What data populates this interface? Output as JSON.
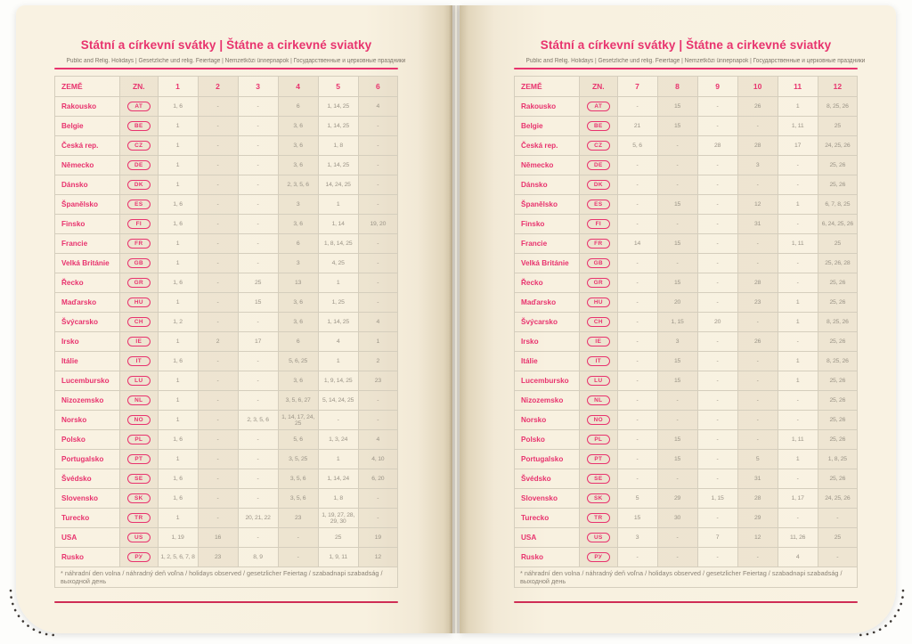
{
  "colors": {
    "accent_pink": "#e8336e",
    "rule_red": "#cf2d55",
    "paper_cream": "#f8f1e0",
    "value_grey": "#9a9386"
  },
  "title": "Státní a církevní svátky | Štátne a cirkevné sviatky",
  "subtitle": "Public and Relig. Holidays | Gesetzliche und relig. Feiertage | Nemzetközi ünnepnapok | Государственные и церковные праздники",
  "table": {
    "country_header": "ZEMĚ",
    "code_header": "ZN.",
    "footnote": "* náhradní den volna / náhradný deň voľna / holidays observed / gesetzlicher Feiertag / szabadnapi szabadság / выходной день"
  },
  "left_page": {
    "months": [
      "1",
      "2",
      "3",
      "4",
      "5",
      "6"
    ],
    "rows": [
      {
        "country": "Rakousko",
        "code": "AT",
        "values": [
          "1, 6",
          "-",
          "-",
          "6",
          "1, 14, 25",
          "4"
        ]
      },
      {
        "country": "Belgie",
        "code": "BE",
        "values": [
          "1",
          "-",
          "-",
          "3, 6",
          "1, 14, 25",
          "-"
        ]
      },
      {
        "country": "Česká rep.",
        "code": "CZ",
        "values": [
          "1",
          "-",
          "-",
          "3, 6",
          "1, 8",
          "-"
        ]
      },
      {
        "country": "Německo",
        "code": "DE",
        "values": [
          "1",
          "-",
          "-",
          "3, 6",
          "1, 14, 25",
          "-"
        ]
      },
      {
        "country": "Dánsko",
        "code": "DK",
        "values": [
          "1",
          "-",
          "-",
          "2, 3, 5, 6",
          "14, 24, 25",
          "-"
        ]
      },
      {
        "country": "Španělsko",
        "code": "ES",
        "values": [
          "1, 6",
          "-",
          "-",
          "3",
          "1",
          "-"
        ]
      },
      {
        "country": "Finsko",
        "code": "FI",
        "values": [
          "1, 6",
          "-",
          "-",
          "3, 6",
          "1, 14",
          "19, 20"
        ]
      },
      {
        "country": "Francie",
        "code": "FR",
        "values": [
          "1",
          "-",
          "-",
          "6",
          "1, 8, 14, 25",
          "-"
        ]
      },
      {
        "country": "Velká Británie",
        "code": "GB",
        "values": [
          "1",
          "-",
          "-",
          "3",
          "4, 25",
          "-"
        ]
      },
      {
        "country": "Řecko",
        "code": "GR",
        "values": [
          "1, 6",
          "-",
          "25",
          "13",
          "1",
          "-"
        ]
      },
      {
        "country": "Maďarsko",
        "code": "HU",
        "values": [
          "1",
          "-",
          "15",
          "3, 6",
          "1, 25",
          "-"
        ]
      },
      {
        "country": "Švýcarsko",
        "code": "CH",
        "values": [
          "1, 2",
          "-",
          "-",
          "3, 6",
          "1, 14, 25",
          "4"
        ]
      },
      {
        "country": "Irsko",
        "code": "IE",
        "values": [
          "1",
          "2",
          "17",
          "6",
          "4",
          "1"
        ]
      },
      {
        "country": "Itálie",
        "code": "IT",
        "values": [
          "1, 6",
          "-",
          "-",
          "5, 6, 25",
          "1",
          "2"
        ]
      },
      {
        "country": "Lucembursko",
        "code": "LU",
        "values": [
          "1",
          "-",
          "-",
          "3, 6",
          "1, 9, 14, 25",
          "23"
        ]
      },
      {
        "country": "Nizozemsko",
        "code": "NL",
        "values": [
          "1",
          "-",
          "-",
          "3, 5, 6, 27",
          "5, 14, 24, 25",
          "-"
        ]
      },
      {
        "country": "Norsko",
        "code": "NO",
        "values": [
          "1",
          "-",
          "2, 3, 5, 6",
          "1, 14, 17, 24, 25",
          "-",
          "-"
        ]
      },
      {
        "country": "Polsko",
        "code": "PL",
        "values": [
          "1, 6",
          "-",
          "-",
          "5, 6",
          "1, 3, 24",
          "4"
        ]
      },
      {
        "country": "Portugalsko",
        "code": "PT",
        "values": [
          "1",
          "-",
          "-",
          "3, 5, 25",
          "1",
          "4, 10"
        ]
      },
      {
        "country": "Švédsko",
        "code": "SE",
        "values": [
          "1, 6",
          "-",
          "-",
          "3, 5, 6",
          "1, 14, 24",
          "6, 20"
        ]
      },
      {
        "country": "Slovensko",
        "code": "SK",
        "values": [
          "1, 6",
          "-",
          "-",
          "3, 5, 6",
          "1, 8",
          "-"
        ]
      },
      {
        "country": "Turecko",
        "code": "TR",
        "values": [
          "1",
          "-",
          "20, 21, 22",
          "23",
          "1, 19, 27, 28, 29, 30",
          "-"
        ]
      },
      {
        "country": "USA",
        "code": "US",
        "values": [
          "1, 19",
          "16",
          "-",
          "-",
          "25",
          "19"
        ]
      },
      {
        "country": "Rusko",
        "code": "РУ",
        "values": [
          "1, 2, 5, 6, 7, 8",
          "23",
          "8, 9",
          "-",
          "1, 9, 11",
          "12"
        ]
      }
    ]
  },
  "right_page": {
    "months": [
      "7",
      "8",
      "9",
      "10",
      "11",
      "12"
    ],
    "rows": [
      {
        "country": "Rakousko",
        "code": "AT",
        "values": [
          "-",
          "15",
          "-",
          "26",
          "1",
          "8, 25, 26"
        ]
      },
      {
        "country": "Belgie",
        "code": "BE",
        "values": [
          "21",
          "15",
          "-",
          "-",
          "1, 11",
          "25"
        ]
      },
      {
        "country": "Česká rep.",
        "code": "CZ",
        "values": [
          "5, 6",
          "-",
          "28",
          "28",
          "17",
          "24, 25, 26"
        ]
      },
      {
        "country": "Německo",
        "code": "DE",
        "values": [
          "-",
          "-",
          "-",
          "3",
          "-",
          "25, 26"
        ]
      },
      {
        "country": "Dánsko",
        "code": "DK",
        "values": [
          "-",
          "-",
          "-",
          "-",
          "-",
          "25, 26"
        ]
      },
      {
        "country": "Španělsko",
        "code": "ES",
        "values": [
          "-",
          "15",
          "-",
          "12",
          "1",
          "6, 7, 8, 25"
        ]
      },
      {
        "country": "Finsko",
        "code": "FI",
        "values": [
          "-",
          "-",
          "-",
          "31",
          "-",
          "6, 24, 25, 26"
        ]
      },
      {
        "country": "Francie",
        "code": "FR",
        "values": [
          "14",
          "15",
          "-",
          "-",
          "1, 11",
          "25"
        ]
      },
      {
        "country": "Velká Británie",
        "code": "GB",
        "values": [
          "-",
          "-",
          "-",
          "-",
          "-",
          "25, 26, 28"
        ]
      },
      {
        "country": "Řecko",
        "code": "GR",
        "values": [
          "-",
          "15",
          "-",
          "28",
          "-",
          "25, 26"
        ]
      },
      {
        "country": "Maďarsko",
        "code": "HU",
        "values": [
          "-",
          "20",
          "-",
          "23",
          "1",
          "25, 26"
        ]
      },
      {
        "country": "Švýcarsko",
        "code": "CH",
        "values": [
          "-",
          "1, 15",
          "20",
          "-",
          "1",
          "8, 25, 26"
        ]
      },
      {
        "country": "Irsko",
        "code": "IE",
        "values": [
          "-",
          "3",
          "-",
          "26",
          "-",
          "25, 26"
        ]
      },
      {
        "country": "Itálie",
        "code": "IT",
        "values": [
          "-",
          "15",
          "-",
          "-",
          "1",
          "8, 25, 26"
        ]
      },
      {
        "country": "Lucembursko",
        "code": "LU",
        "values": [
          "-",
          "15",
          "-",
          "-",
          "1",
          "25, 26"
        ]
      },
      {
        "country": "Nizozemsko",
        "code": "NL",
        "values": [
          "-",
          "-",
          "-",
          "-",
          "-",
          "25, 26"
        ]
      },
      {
        "country": "Norsko",
        "code": "NO",
        "values": [
          "-",
          "-",
          "-",
          "-",
          "-",
          "25, 26"
        ]
      },
      {
        "country": "Polsko",
        "code": "PL",
        "values": [
          "-",
          "15",
          "-",
          "-",
          "1, 11",
          "25, 26"
        ]
      },
      {
        "country": "Portugalsko",
        "code": "PT",
        "values": [
          "-",
          "15",
          "-",
          "5",
          "1",
          "1, 8, 25"
        ]
      },
      {
        "country": "Švédsko",
        "code": "SE",
        "values": [
          "-",
          "-",
          "-",
          "31",
          "-",
          "25, 26"
        ]
      },
      {
        "country": "Slovensko",
        "code": "SK",
        "values": [
          "5",
          "29",
          "1, 15",
          "28",
          "1, 17",
          "24, 25, 26"
        ]
      },
      {
        "country": "Turecko",
        "code": "TR",
        "values": [
          "15",
          "30",
          "-",
          "29",
          "-",
          "-"
        ]
      },
      {
        "country": "USA",
        "code": "US",
        "values": [
          "3",
          "-",
          "7",
          "12",
          "11, 26",
          "25"
        ]
      },
      {
        "country": "Rusko",
        "code": "РУ",
        "values": [
          "-",
          "-",
          "-",
          "-",
          "4",
          "-"
        ]
      }
    ]
  }
}
